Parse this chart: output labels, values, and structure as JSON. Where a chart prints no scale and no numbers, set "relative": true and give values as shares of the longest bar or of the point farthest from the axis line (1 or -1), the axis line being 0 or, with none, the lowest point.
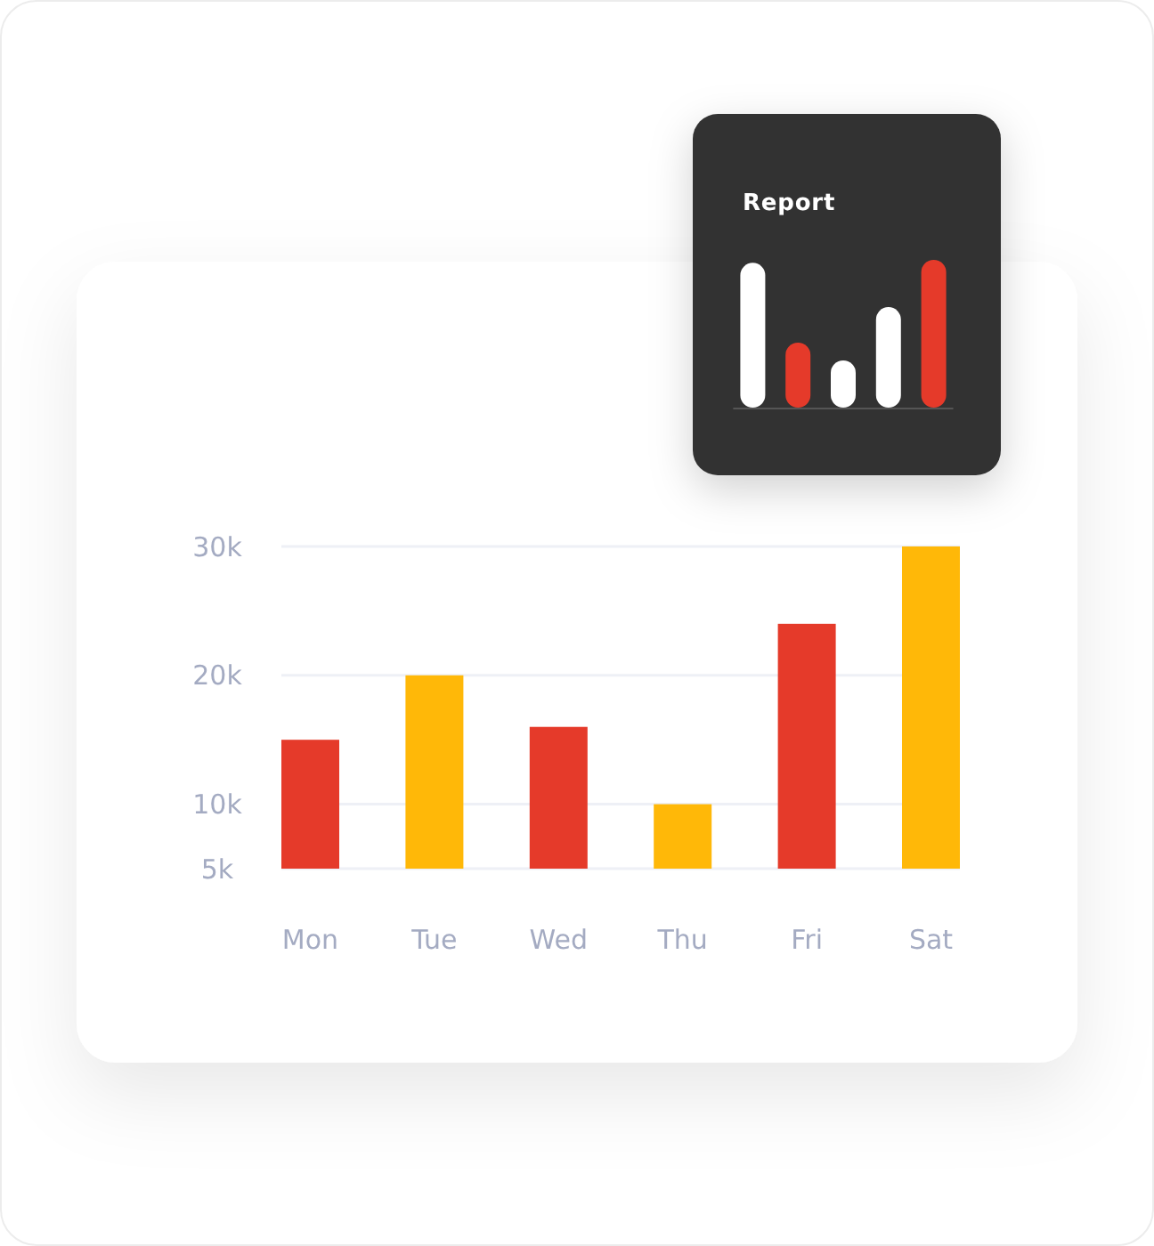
{
  "chart_data": [
    {
      "type": "bar",
      "categories": [
        "Mon",
        "Tue",
        "Wed",
        "Thu",
        "Fri",
        "Sat"
      ],
      "values": [
        15,
        20,
        16,
        10,
        24,
        30
      ],
      "colors": [
        "#e53a2a",
        "#ffb808",
        "#e53a2a",
        "#ffb808",
        "#e53a2a",
        "#ffb808"
      ],
      "ylim": [
        5,
        30
      ],
      "yticks": [
        {
          "value": 5,
          "label": "5k"
        },
        {
          "value": 10,
          "label": "10k"
        },
        {
          "value": 20,
          "label": "20k"
        },
        {
          "value": 30,
          "label": "30k"
        }
      ],
      "grid": "y"
    },
    {
      "type": "bar",
      "title": "Report",
      "categories": [
        null,
        null,
        null,
        null,
        null
      ],
      "values": [
        0.98,
        0.44,
        0.32,
        0.68,
        1
      ],
      "colors": [
        "#ffffff",
        "#e53a2a",
        "#ffffff",
        "#ffffff",
        "#e53a2a"
      ],
      "relative": true
    }
  ]
}
